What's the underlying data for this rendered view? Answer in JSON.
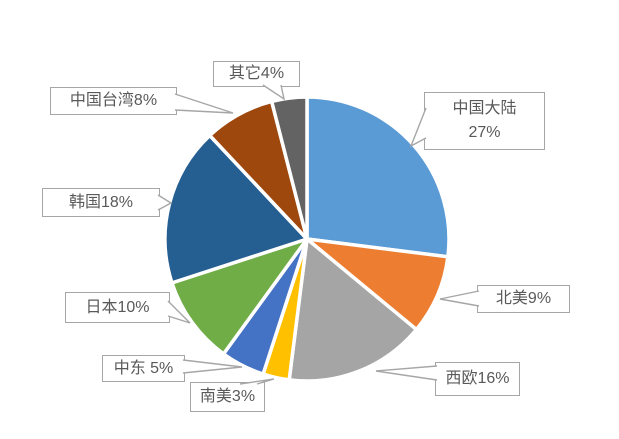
{
  "chart_data": {
    "type": "pie",
    "title": "",
    "unit": "%",
    "start_angle_deg": 0,
    "direction": "clockwise",
    "legend": "none",
    "label_style": "callout-boxes",
    "categories": [
      "中国大陆",
      "北美",
      "西欧",
      "南美",
      "中东",
      "日本",
      "韩国",
      "中国台湾",
      "其它"
    ],
    "values": [
      27,
      9,
      16,
      3,
      5,
      10,
      18,
      8,
      4
    ],
    "colors": [
      "#5B9BD5",
      "#ED7D31",
      "#A5A5A5",
      "#FFC000",
      "#4472C4",
      "#70AD47",
      "#255E91",
      "#9E480E",
      "#636363"
    ],
    "slice_border_color": "#FFFFFF"
  },
  "callouts": {
    "mainland_china": {
      "line1": "中国大陆",
      "line2": "27%"
    },
    "north_america": {
      "text": "北美9%"
    },
    "western_europe": {
      "text": "西欧16%"
    },
    "south_america": {
      "text": "南美3%"
    },
    "middle_east": {
      "text": "中东 5%"
    },
    "japan": {
      "text": "日本10%"
    },
    "south_korea": {
      "text": "韩国18%"
    },
    "taiwan": {
      "text": "中国台湾8%"
    },
    "others": {
      "text": "其它4%"
    }
  },
  "style": {
    "background": "#FFFFFF",
    "callout_border_color": "#A6A6A6",
    "callout_text_color": "#595959"
  }
}
